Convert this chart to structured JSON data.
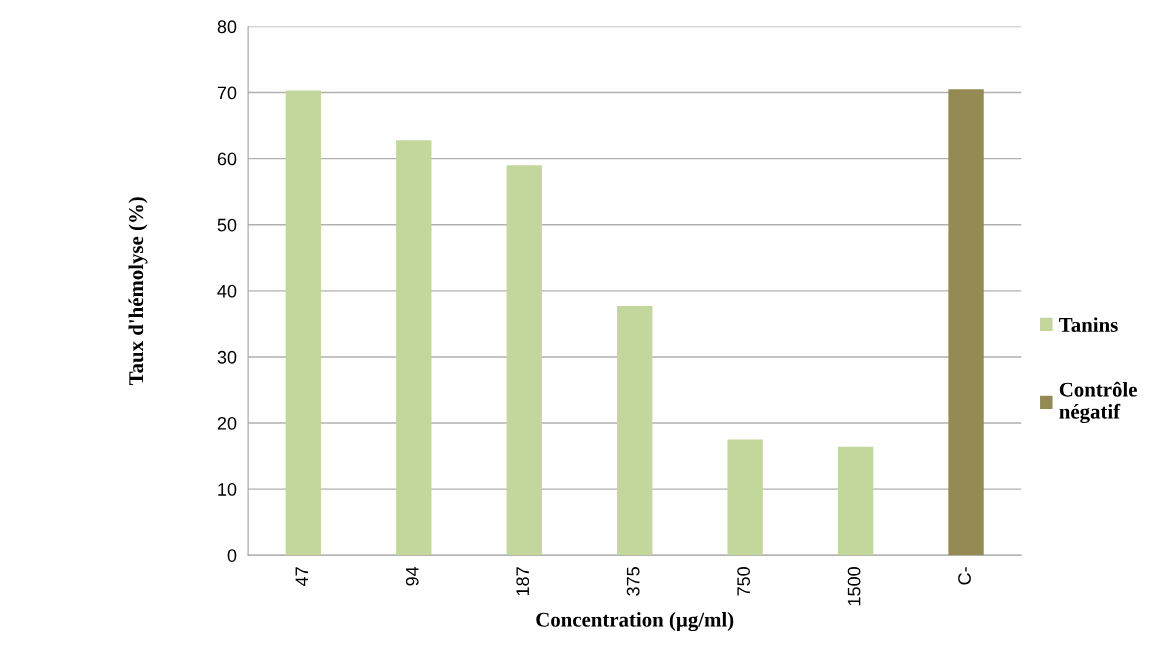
{
  "chart_data": {
    "type": "bar",
    "xlabel": "Concentration (µg/ml)",
    "ylabel": "Taux d'hémolyse (%)",
    "categories": [
      "47",
      "94",
      "187",
      "375",
      "750",
      "1500",
      "C-"
    ],
    "series": [
      {
        "name": "Tanins",
        "color": "#c3d69b",
        "values": [
          70.3,
          62.8,
          59,
          37.7,
          17.5,
          16.4,
          null
        ]
      },
      {
        "name": "Contrôle\nnégatif",
        "color": "#948a54",
        "values": [
          null,
          null,
          null,
          null,
          null,
          null,
          70.5
        ]
      }
    ],
    "ylim": [
      0,
      80
    ],
    "yticks": [
      0,
      10,
      20,
      30,
      40,
      50,
      60,
      70,
      80
    ],
    "grid": "y",
    "legend": "right"
  }
}
